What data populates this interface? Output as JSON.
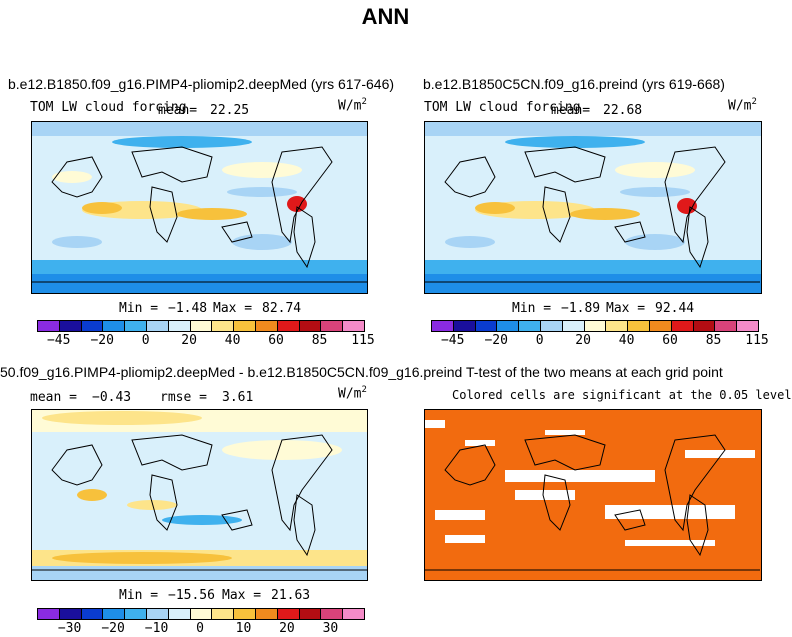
{
  "title": "ANN",
  "panels": [
    {
      "case": "b.e12.B1850.f09_g16.PIMP4-pliomip2.deepMed (yrs 617-646)",
      "variable": "TOM LW cloud forcing",
      "mean_label": "mean=",
      "mean_value": "22.25",
      "units": "W/m",
      "units_exp": "2",
      "min_label": "Min =",
      "min_value": "−1.48",
      "max_label": "Max =",
      "max_value": "82.74",
      "colorbar_ticks": [
        "−45",
        "−20",
        "0",
        "20",
        "40",
        "60",
        "85",
        "115"
      ]
    },
    {
      "case": "b.e12.B1850C5CN.f09_g16.preind (yrs 619-668)",
      "variable": "TOM LW cloud forcing",
      "mean_label": "mean=",
      "mean_value": "22.68",
      "units": "W/m",
      "units_exp": "2",
      "min_label": "Min =",
      "min_value": "−1.89",
      "max_label": "Max =",
      "max_value": "92.44",
      "colorbar_ticks": [
        "−45",
        "−20",
        "0",
        "20",
        "40",
        "60",
        "85",
        "115"
      ]
    },
    {
      "case": "50.f09_g16.PIMP4-pliomip2.deepMed - b.e12.B1850C5CN.f09_g16.preind",
      "mean_label": "mean =",
      "mean_value": "−0.43",
      "rmse_label": "rmse =",
      "rmse_value": "3.61",
      "units": "W/m",
      "units_exp": "2",
      "min_label": "Min =",
      "min_value": "−15.56",
      "max_label": "Max =",
      "max_value": "21.63",
      "colorbar_ticks": [
        "−30",
        "−20",
        "−10",
        "0",
        "10",
        "20",
        "30"
      ]
    },
    {
      "case": "T-test of the two means at each grid point",
      "subtitle": "Colored cells are significant at the 0.05 level"
    }
  ],
  "colors": {
    "palette": [
      "#8a2be2",
      "#1a0f9c",
      "#0a3cd0",
      "#1e8ee8",
      "#3fb1ee",
      "#a8d4f5",
      "#d9f0fb",
      "#fffbd6",
      "#fde48a",
      "#f7c13c",
      "#f08a1e",
      "#e0191a",
      "#b30d13",
      "#d9437a",
      "#f48bc8"
    ],
    "significance": "#f26b0f",
    "land_outline": "#000000"
  },
  "chart_data": [
    {
      "type": "heatmap",
      "title": "b.e12.B1850.f09_g16.PIMP4-pliomip2.deepMed (yrs 617-646)",
      "variable": "TOM LW cloud forcing",
      "units": "W/m2",
      "mean": 22.25,
      "min": -1.48,
      "max": 82.74,
      "colorbar_ticks": [
        -45,
        -20,
        0,
        20,
        40,
        60,
        85,
        115
      ]
    },
    {
      "type": "heatmap",
      "title": "b.e12.B1850C5CN.f09_g16.preind (yrs 619-668)",
      "variable": "TOM LW cloud forcing",
      "units": "W/m2",
      "mean": 22.68,
      "min": -1.89,
      "max": 92.44,
      "colorbar_ticks": [
        -45,
        -20,
        0,
        20,
        40,
        60,
        85,
        115
      ]
    },
    {
      "type": "heatmap",
      "title": "50.f09_g16.PIMP4-pliomip2.deepMed - b.e12.B1850C5CN.f09_g16.preind",
      "units": "W/m2",
      "mean": -0.43,
      "rmse": 3.61,
      "min": -15.56,
      "max": 21.63,
      "colorbar_ticks": [
        -30,
        -20,
        -10,
        0,
        10,
        20,
        30
      ]
    },
    {
      "type": "heatmap",
      "title": "T-test of the two means at each grid point",
      "subtitle": "Colored cells are significant at the 0.05 level"
    }
  ]
}
